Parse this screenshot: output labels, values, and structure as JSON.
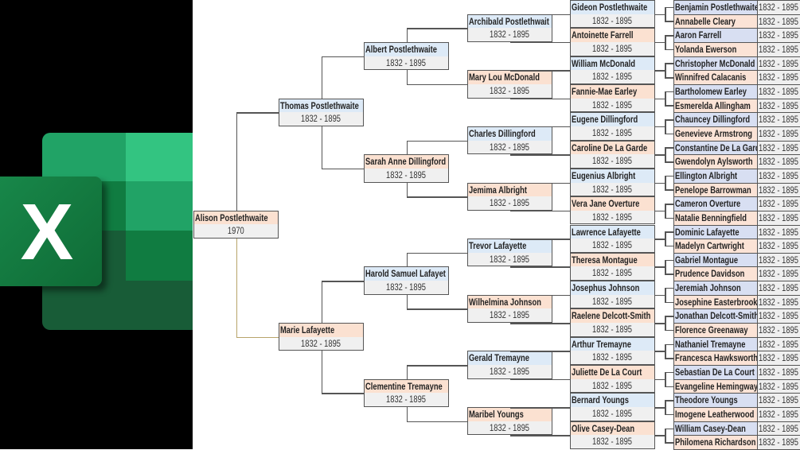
{
  "logo": {
    "name": "Microsoft Excel",
    "letter": "X",
    "colors": [
      "#21a366",
      "#33c481",
      "#107c41",
      "#185c37"
    ]
  },
  "colors": {
    "male_name": "#ddeaf7",
    "female_name": "#fbe1d1",
    "years": "#f0f0f0",
    "line": "#555555",
    "root_maternal_line": "#b8a46a"
  },
  "tree": {
    "generations": [
      [
        {
          "name": "Alison Postlethwaite",
          "years": "1970"
        }
      ],
      [
        {
          "name": "Thomas Postlethwaite",
          "years": "1832 - 1895"
        },
        {
          "name": "Marie Lafayette",
          "years": "1832 - 1895"
        }
      ],
      [
        {
          "name": "Albert Postlethwaite",
          "years": "1832 - 1895"
        },
        {
          "name": "Sarah Anne Dillingford",
          "years": "1832 - 1895"
        },
        {
          "name": "Harold Samuel Lafayet",
          "years": "1832 - 1895"
        },
        {
          "name": "Clementine Tremayne",
          "years": "1832 - 1895"
        }
      ],
      [
        {
          "name": "Archibald Postlethwait",
          "years": "1832 - 1895"
        },
        {
          "name": "Mary Lou McDonald",
          "years": "1832 - 1895"
        },
        {
          "name": "Charles Dillingford",
          "years": "1832 - 1895"
        },
        {
          "name": "Jemima Albright",
          "years": "1832 - 1895"
        },
        {
          "name": "Trevor Lafayette",
          "years": "1832 - 1895"
        },
        {
          "name": "Wilhelmina Johnson",
          "years": "1832 - 1895"
        },
        {
          "name": "Gerald Tremayne",
          "years": "1832 - 1895"
        },
        {
          "name": "Maribel Youngs",
          "years": "1832 - 1895"
        }
      ],
      [
        {
          "name": "Gideon Postlethwaite",
          "years": "1832 - 1895"
        },
        {
          "name": "Antoinette Farrell",
          "years": "1832 - 1895"
        },
        {
          "name": "William McDonald",
          "years": "1832 - 1895"
        },
        {
          "name": "Fannie-Mae Earley",
          "years": "1832 - 1895"
        },
        {
          "name": "Eugene Dillingford",
          "years": "1832 - 1895"
        },
        {
          "name": "Caroline De La Garde",
          "years": "1832 - 1895"
        },
        {
          "name": "Eugenius Albright",
          "years": "1832 - 1895"
        },
        {
          "name": "Vera Jane Overture",
          "years": "1832 - 1895"
        },
        {
          "name": "Lawrence Lafayette",
          "years": "1832 - 1895"
        },
        {
          "name": "Theresa Montague",
          "years": "1832 - 1895"
        },
        {
          "name": "Josephus Johnson",
          "years": "1832 - 1895"
        },
        {
          "name": "Raelene Delcott-Smith",
          "years": "1832 - 1895"
        },
        {
          "name": "Arthur Tremayne",
          "years": "1832 - 1895"
        },
        {
          "name": "Juliette De La Court",
          "years": "1832 - 1895"
        },
        {
          "name": "Bernard Youngs",
          "years": "1832 - 1895"
        },
        {
          "name": "Olive Casey-Dean",
          "years": "1832 - 1895"
        }
      ],
      [
        {
          "name": "Benjamin Postlethwaite",
          "years": "1832 - 1895"
        },
        {
          "name": "Annabelle Cleary",
          "years": "1832 - 1895"
        },
        {
          "name": "Aaron Farrell",
          "years": "1832 - 1895"
        },
        {
          "name": "Yolanda Ewerson",
          "years": "1832 - 1895"
        },
        {
          "name": "Christopher McDonald",
          "years": "1832 - 1895"
        },
        {
          "name": "Winnifred Calacanis",
          "years": "1832 - 1895"
        },
        {
          "name": "Bartholomew Earley",
          "years": "1832 - 1895"
        },
        {
          "name": "Esmerelda Allingham",
          "years": "1832 - 1895"
        },
        {
          "name": "Chauncey Dillingford",
          "years": "1832 - 1895"
        },
        {
          "name": "Genevieve Armstrong",
          "years": "1832 - 1895"
        },
        {
          "name": "Constantine De La Garde",
          "years": "1832 - 1895"
        },
        {
          "name": "Gwendolyn Aylsworth",
          "years": "1832 - 1895"
        },
        {
          "name": "Ellington Albright",
          "years": "1832 - 1895"
        },
        {
          "name": "Penelope Barrowman",
          "years": "1832 - 1895"
        },
        {
          "name": "Cameron Overture",
          "years": "1832 - 1895"
        },
        {
          "name": "Natalie Benningfield",
          "years": "1832 - 1895"
        },
        {
          "name": "Dominic Lafayette",
          "years": "1832 - 1895"
        },
        {
          "name": "Madelyn Cartwright",
          "years": "1832 - 1895"
        },
        {
          "name": "Gabriel Montague",
          "years": "1832 - 1895"
        },
        {
          "name": "Prudence Davidson",
          "years": "1832 - 1895"
        },
        {
          "name": "Jeremiah Johnson",
          "years": "1832 - 1895"
        },
        {
          "name": "Josephine Easterbrook",
          "years": "1832 - 1895"
        },
        {
          "name": "Jonathan Delcott-Smith",
          "years": "1832 - 1895"
        },
        {
          "name": "Florence Greenaway",
          "years": "1832 - 1895"
        },
        {
          "name": "Nathaniel Tremayne",
          "years": "1832 - 1895"
        },
        {
          "name": "Francesca Hawksworth",
          "years": "1832 - 1895"
        },
        {
          "name": "Sebastian De La Court",
          "years": "1832 - 1895"
        },
        {
          "name": "Evangeline Hemingway",
          "years": "1832 - 1895"
        },
        {
          "name": "Theodore Youngs",
          "years": "1832 - 1895"
        },
        {
          "name": "Imogene Leatherwood",
          "years": "1832 - 1895"
        },
        {
          "name": "William Casey-Dean",
          "years": "1832 - 1895"
        },
        {
          "name": "Philomena Richardson",
          "years": "1832 - 1895"
        }
      ]
    ]
  }
}
